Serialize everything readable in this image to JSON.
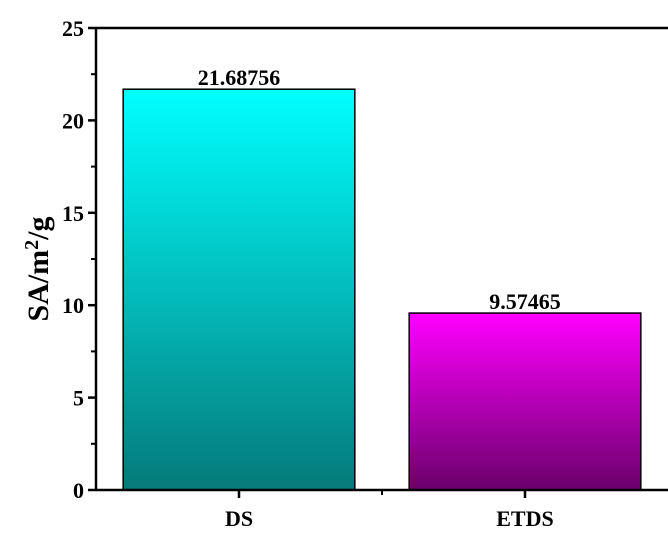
{
  "chart_data": {
    "type": "bar",
    "categories": [
      "DS",
      "ETDS"
    ],
    "values": [
      21.68756,
      9.57465
    ],
    "data_labels": [
      "21.68756",
      "9.57465"
    ],
    "title": "",
    "xlabel": "",
    "ylabel": {
      "base": "SA/m",
      "superscript": "2",
      "suffix": "/g"
    },
    "ylim": [
      0,
      25
    ],
    "yticks": [
      0,
      5,
      10,
      15,
      20,
      25
    ],
    "grid": false,
    "legend": "none",
    "colors": {
      "DS": {
        "top": "#00ffff",
        "bottom": "#057a7a"
      },
      "ETDS": {
        "top": "#ff00ff",
        "bottom": "#6a006a"
      }
    }
  }
}
